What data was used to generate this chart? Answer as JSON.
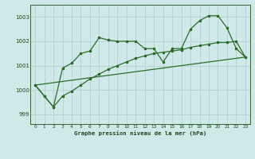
{
  "background_color": "#cfe8e8",
  "grid_color": "#b0cccc",
  "line_color": "#2a6e2a",
  "title": "Graphe pression niveau de la mer (hPa)",
  "xlim": [
    -0.5,
    23.5
  ],
  "ylim": [
    998.6,
    1003.5
  ],
  "yticks": [
    999,
    1000,
    1001,
    1002,
    1003
  ],
  "xticks": [
    0,
    1,
    2,
    3,
    4,
    5,
    6,
    7,
    8,
    9,
    10,
    11,
    12,
    13,
    14,
    15,
    16,
    17,
    18,
    19,
    20,
    21,
    22,
    23
  ],
  "series1_x": [
    0,
    1,
    2,
    3,
    4,
    5,
    6,
    7,
    8,
    9,
    10,
    11,
    12,
    13,
    14,
    15,
    16,
    17,
    18,
    19,
    20,
    21,
    22,
    23
  ],
  "series1_y": [
    1000.2,
    999.75,
    999.3,
    1000.9,
    1001.1,
    1001.5,
    1001.6,
    1002.15,
    1002.05,
    1002.0,
    1002.0,
    1002.0,
    1001.7,
    1001.7,
    1001.15,
    1001.7,
    1001.7,
    1002.5,
    1002.85,
    1003.05,
    1003.05,
    1002.55,
    1001.7,
    1001.35
  ],
  "series2_x": [
    0,
    1,
    2,
    3,
    4,
    5,
    6,
    7,
    8,
    9,
    10,
    11,
    12,
    13,
    14,
    15,
    16,
    17,
    18,
    19,
    20,
    21,
    22,
    23
  ],
  "series2_y": [
    1000.2,
    999.75,
    999.3,
    999.75,
    999.95,
    1000.2,
    1000.45,
    1000.65,
    1000.85,
    1001.0,
    1001.15,
    1001.3,
    1001.4,
    1001.5,
    1001.55,
    1001.6,
    1001.65,
    1001.75,
    1001.82,
    1001.88,
    1001.95,
    1001.95,
    1002.0,
    1001.35
  ],
  "series3_x": [
    0,
    23
  ],
  "series3_y": [
    1000.2,
    1001.35
  ]
}
